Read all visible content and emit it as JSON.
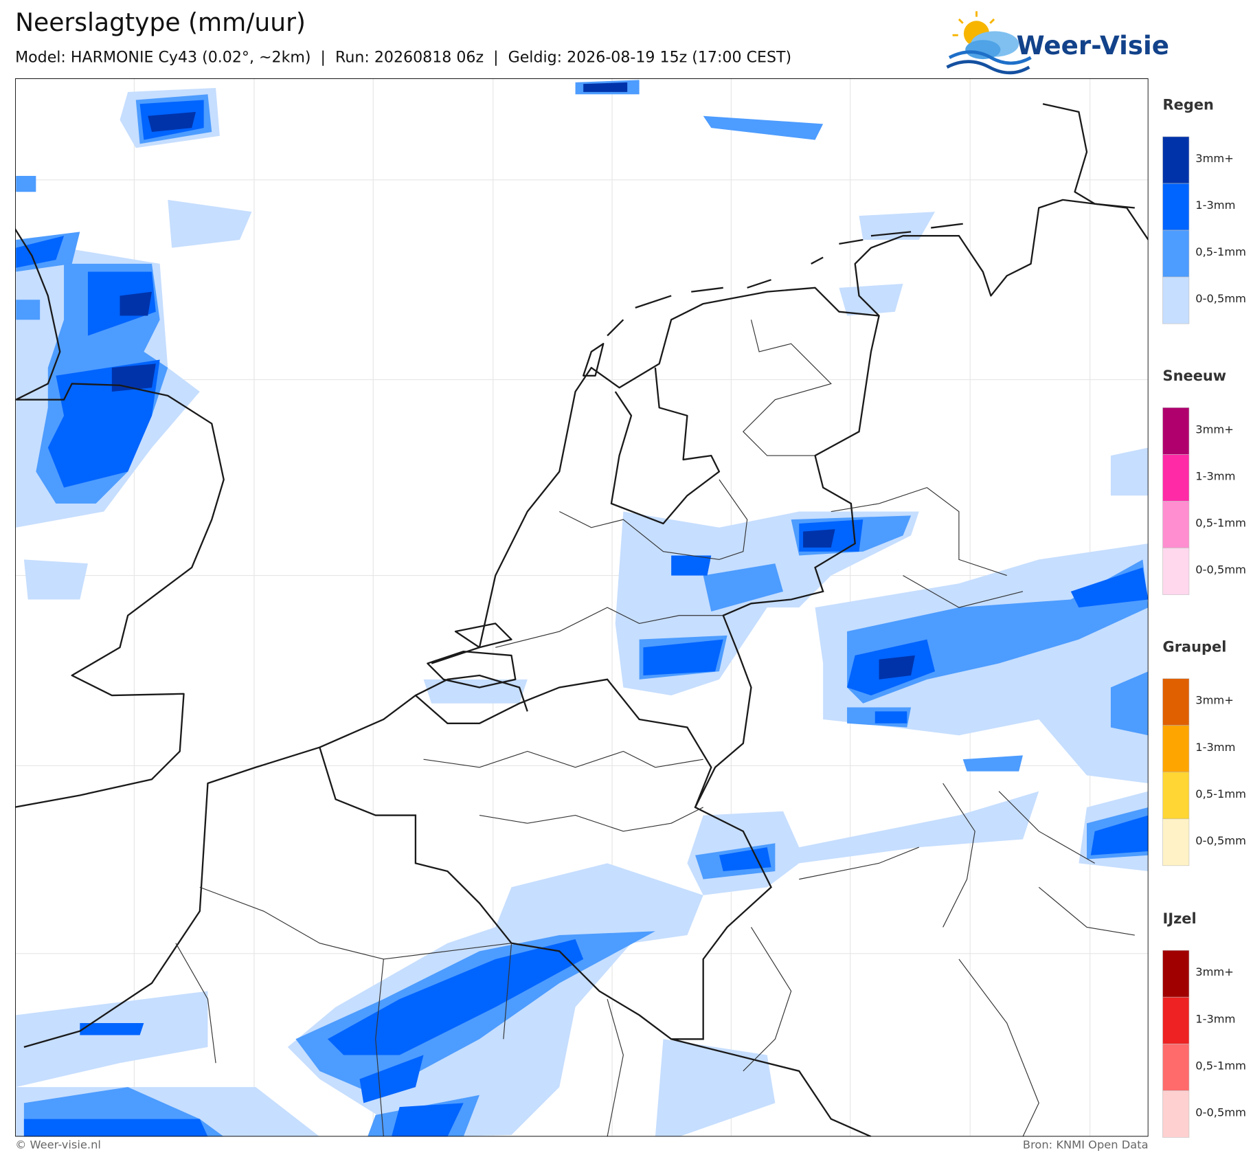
{
  "header": {
    "title": "Neerslagtype (mm/uur)",
    "subtitle": "Model: HARMONIE Cy43 (0.02°, ~2km)  |  Run: 20260818 06z  |  Geldig: 2026-08-19 15z (17:00 CEST)"
  },
  "logo": {
    "text": "Weer-Visie"
  },
  "legend": [
    {
      "title": "Regen",
      "items": [
        {
          "label": "3mm+",
          "color": "#0033aa"
        },
        {
          "label": "1-3mm",
          "color": "#0064ff"
        },
        {
          "label": "0,5-1mm",
          "color": "#4d9cff"
        },
        {
          "label": "0-0,5mm",
          "color": "#c6deff"
        }
      ]
    },
    {
      "title": "Sneeuw",
      "items": [
        {
          "label": "3mm+",
          "color": "#b0006e"
        },
        {
          "label": "1-3mm",
          "color": "#ff2aa6"
        },
        {
          "label": "0,5-1mm",
          "color": "#ff8ed0"
        },
        {
          "label": "0-0,5mm",
          "color": "#ffd8ee"
        }
      ]
    },
    {
      "title": "Graupel",
      "items": [
        {
          "label": "3mm+",
          "color": "#e06000"
        },
        {
          "label": "1-3mm",
          "color": "#ffa500"
        },
        {
          "label": "0,5-1mm",
          "color": "#ffd633"
        },
        {
          "label": "0-0,5mm",
          "color": "#fff2c6"
        }
      ]
    },
    {
      "title": "IJzel",
      "items": [
        {
          "label": "3mm+",
          "color": "#a00000"
        },
        {
          "label": "1-3mm",
          "color": "#ee2222"
        },
        {
          "label": "0,5-1mm",
          "color": "#ff6b6b"
        },
        {
          "label": "0-0,5mm",
          "color": "#ffd0d0"
        }
      ]
    }
  ],
  "footer": {
    "left": "© Weer-visie.nl",
    "right": "Bron: KNMI Open Data"
  }
}
